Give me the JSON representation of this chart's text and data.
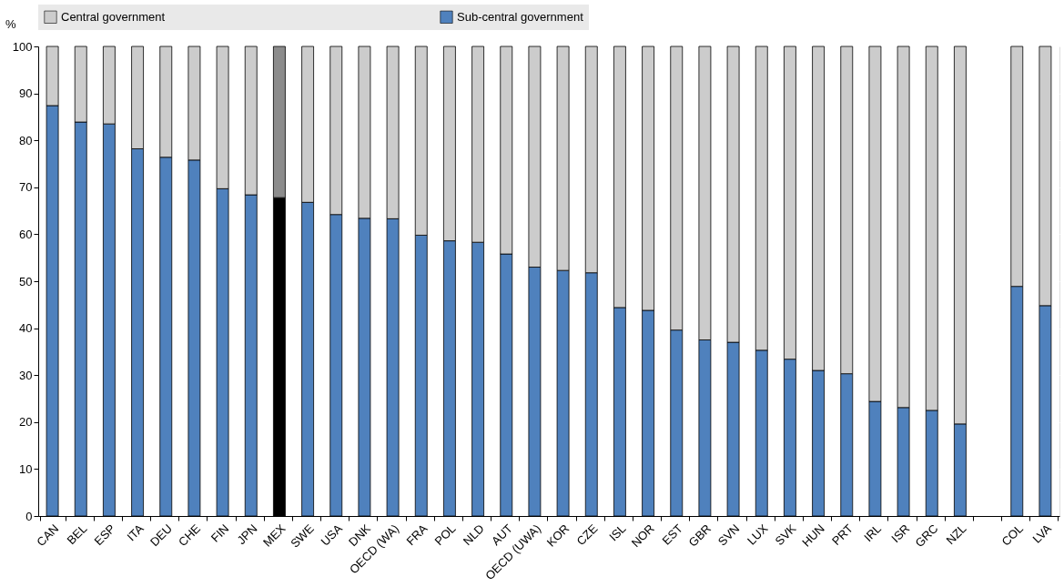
{
  "chart_data": {
    "type": "bar",
    "stacked": true,
    "ylabel": "%",
    "categories": [
      "CAN",
      "BEL",
      "ESP",
      "ITA",
      "DEU",
      "CHE",
      "FIN",
      "JPN",
      "MEX",
      "SWE",
      "USA",
      "DNK",
      "OECD (WA)",
      "FRA",
      "POL",
      "NLD",
      "AUT",
      "OECD (UWA)",
      "KOR",
      "CZE",
      "ISL",
      "NOR",
      "EST",
      "GBR",
      "SVN",
      "LUX",
      "SVK",
      "HUN",
      "PRT",
      "IRL",
      "ISR",
      "GRC",
      "NZL",
      null,
      "COL",
      "LVA"
    ],
    "series": [
      {
        "name": "Sub-central government",
        "color": "#4f81bd",
        "colors": [
          "#4f81bd",
          "#4f81bd",
          "#4f81bd",
          "#4f81bd",
          "#4f81bd",
          "#4f81bd",
          "#4f81bd",
          "#4f81bd",
          "#000000",
          "#4f81bd",
          "#4f81bd",
          "#4f81bd",
          "#4f81bd",
          "#4f81bd",
          "#4f81bd",
          "#4f81bd",
          "#4f81bd",
          "#4f81bd",
          "#4f81bd",
          "#4f81bd",
          "#4f81bd",
          "#4f81bd",
          "#4f81bd",
          "#4f81bd",
          "#4f81bd",
          "#4f81bd",
          "#4f81bd",
          "#4f81bd",
          "#4f81bd",
          "#4f81bd",
          "#4f81bd",
          "#4f81bd",
          "#4f81bd",
          "#4f81bd",
          "#4f81bd",
          "#4f81bd"
        ],
        "values": [
          87.4,
          83.9,
          83.5,
          78.2,
          76.4,
          75.8,
          69.7,
          68.4,
          67.8,
          66.8,
          64.2,
          63.4,
          63.3,
          59.8,
          58.6,
          58.3,
          55.8,
          53.0,
          52.3,
          51.8,
          44.4,
          43.8,
          39.6,
          37.5,
          37.0,
          35.3,
          33.4,
          31.0,
          30.3,
          24.4,
          23.1,
          22.5,
          19.6,
          null,
          48.9,
          44.8
        ]
      },
      {
        "name": "Central government",
        "color": "#cccccc",
        "colors": [
          "#cccccc",
          "#cccccc",
          "#cccccc",
          "#cccccc",
          "#cccccc",
          "#cccccc",
          "#cccccc",
          "#cccccc",
          "#8c8c8c",
          "#cccccc",
          "#cccccc",
          "#cccccc",
          "#cccccc",
          "#cccccc",
          "#cccccc",
          "#cccccc",
          "#cccccc",
          "#cccccc",
          "#cccccc",
          "#cccccc",
          "#cccccc",
          "#cccccc",
          "#cccccc",
          "#cccccc",
          "#cccccc",
          "#cccccc",
          "#cccccc",
          "#cccccc",
          "#cccccc",
          "#cccccc",
          "#cccccc",
          "#cccccc",
          "#cccccc",
          "#cccccc",
          "#cccccc",
          "#cccccc"
        ],
        "values": [
          12.6,
          16.1,
          16.5,
          21.8,
          23.6,
          24.2,
          30.3,
          31.6,
          32.2,
          33.2,
          35.8,
          36.6,
          36.7,
          40.2,
          41.4,
          41.7,
          44.2,
          47.0,
          47.7,
          48.2,
          55.6,
          56.2,
          60.4,
          62.5,
          63.0,
          64.7,
          66.6,
          69.0,
          69.7,
          75.6,
          76.9,
          77.5,
          80.4,
          null,
          51.1,
          55.2
        ]
      }
    ],
    "ylim": [
      0,
      100
    ],
    "yticks": [
      0,
      10,
      20,
      30,
      40,
      50,
      60,
      70,
      80,
      90,
      100
    ],
    "grid": "y",
    "legend": "top"
  }
}
